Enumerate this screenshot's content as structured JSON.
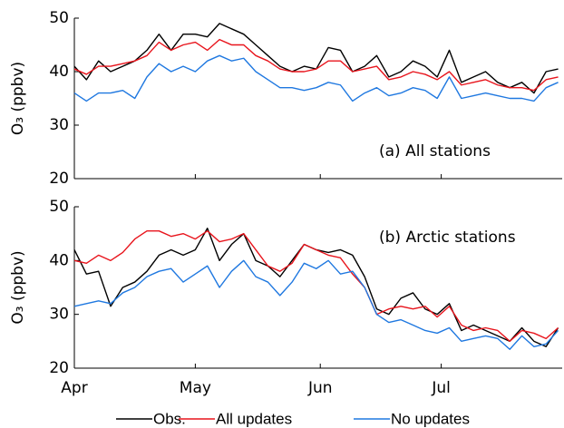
{
  "chart_data": [
    {
      "type": "line",
      "annotation": "(a) All stations",
      "ylabel": "O₃ (ppbv)",
      "x": [
        0,
        3,
        6,
        9,
        12,
        15,
        18,
        21,
        24,
        27,
        30,
        33,
        36,
        39,
        42,
        45,
        48,
        51,
        54,
        57,
        60,
        63,
        66,
        69,
        72,
        75,
        78,
        81,
        84,
        87,
        90,
        93,
        96,
        99,
        102,
        105,
        108,
        111,
        114,
        117,
        120
      ],
      "xlim": [
        0,
        121
      ],
      "ylim": [
        20,
        50
      ],
      "yticks": [
        20,
        30,
        40,
        50
      ],
      "series": [
        {
          "name": "Obs.",
          "color": "#000000",
          "values": [
            41,
            38.5,
            42,
            40,
            41,
            42,
            44,
            47,
            44,
            47,
            47,
            46.5,
            49,
            48,
            47,
            45,
            43,
            41,
            40,
            41,
            40.5,
            44.5,
            44,
            40,
            41,
            43,
            39,
            40,
            42,
            41,
            39,
            44,
            38,
            39,
            40,
            38,
            37,
            38,
            36,
            40,
            40.5
          ]
        },
        {
          "name": "All updates",
          "color": "#e8141c",
          "values": [
            40.5,
            39.5,
            41,
            41,
            41.5,
            42,
            43,
            45.5,
            44,
            45,
            45.5,
            44,
            46,
            45,
            45,
            43,
            42,
            40.5,
            40,
            40,
            40.5,
            42,
            42,
            40,
            40.5,
            41,
            38.5,
            39,
            40,
            39.5,
            38.5,
            40,
            37.5,
            38,
            38.5,
            37.5,
            37,
            37,
            36.5,
            38.5,
            39
          ]
        },
        {
          "name": "No updates",
          "color": "#1f78e0",
          "values": [
            36,
            34.5,
            36,
            36,
            36.5,
            35,
            39,
            41.5,
            40,
            41,
            40,
            42,
            43,
            42,
            42.5,
            40,
            38.5,
            37,
            37,
            36.5,
            37,
            38,
            37.5,
            34.5,
            36,
            37,
            35.5,
            36,
            37,
            36.5,
            35,
            39,
            35,
            35.5,
            36,
            35.5,
            35,
            35,
            34.5,
            37,
            38
          ]
        }
      ]
    },
    {
      "type": "line",
      "annotation": "(b) Arctic stations",
      "ylabel": "O₃ (ppbv)",
      "x": [
        0,
        3,
        6,
        9,
        12,
        15,
        18,
        21,
        24,
        27,
        30,
        33,
        36,
        39,
        42,
        45,
        48,
        51,
        54,
        57,
        60,
        63,
        66,
        69,
        72,
        75,
        78,
        81,
        84,
        87,
        90,
        93,
        96,
        99,
        102,
        105,
        108,
        111,
        114,
        117,
        120
      ],
      "xlim": [
        0,
        121
      ],
      "ylim": [
        20,
        50
      ],
      "yticks": [
        20,
        30,
        40,
        50
      ],
      "xticks": [
        {
          "value": 0,
          "label": "Apr"
        },
        {
          "value": 30,
          "label": "May"
        },
        {
          "value": 61,
          "label": "Jun"
        },
        {
          "value": 91,
          "label": "Jul"
        }
      ],
      "series": [
        {
          "name": "Obs.",
          "color": "#000000",
          "values": [
            42,
            37.5,
            38,
            31.5,
            35,
            36,
            38,
            41,
            42,
            41,
            42,
            46,
            40,
            43,
            45,
            40,
            39,
            37,
            40,
            43,
            42,
            41.5,
            42,
            41,
            37,
            31,
            30,
            33,
            34,
            31,
            30,
            32,
            27,
            28,
            27,
            26,
            25,
            27.5,
            25,
            24,
            27.5
          ]
        },
        {
          "name": "All updates",
          "color": "#e8141c",
          "values": [
            40,
            39.5,
            41,
            40,
            41.5,
            44,
            45.5,
            45.5,
            44.5,
            45,
            44,
            45.5,
            43.5,
            44,
            45,
            42,
            39,
            38,
            39.5,
            43,
            42,
            41,
            40.5,
            37.5,
            35,
            30,
            31,
            31.5,
            31,
            31.5,
            29.5,
            31.5,
            28,
            27,
            27.5,
            27,
            25,
            27,
            26.5,
            25.5,
            27.5
          ]
        },
        {
          "name": "No updates",
          "color": "#1f78e0",
          "values": [
            31.5,
            32,
            32.5,
            32,
            34,
            35,
            37,
            38,
            38.5,
            36,
            37.5,
            39,
            35,
            38,
            40,
            37,
            36,
            33.5,
            36,
            39.5,
            38.5,
            40,
            37.5,
            38,
            35,
            30,
            28.5,
            29,
            28,
            27,
            26.5,
            27.5,
            25,
            25.5,
            26,
            25.5,
            23.5,
            26,
            24,
            24.5,
            27
          ]
        }
      ]
    }
  ]
}
